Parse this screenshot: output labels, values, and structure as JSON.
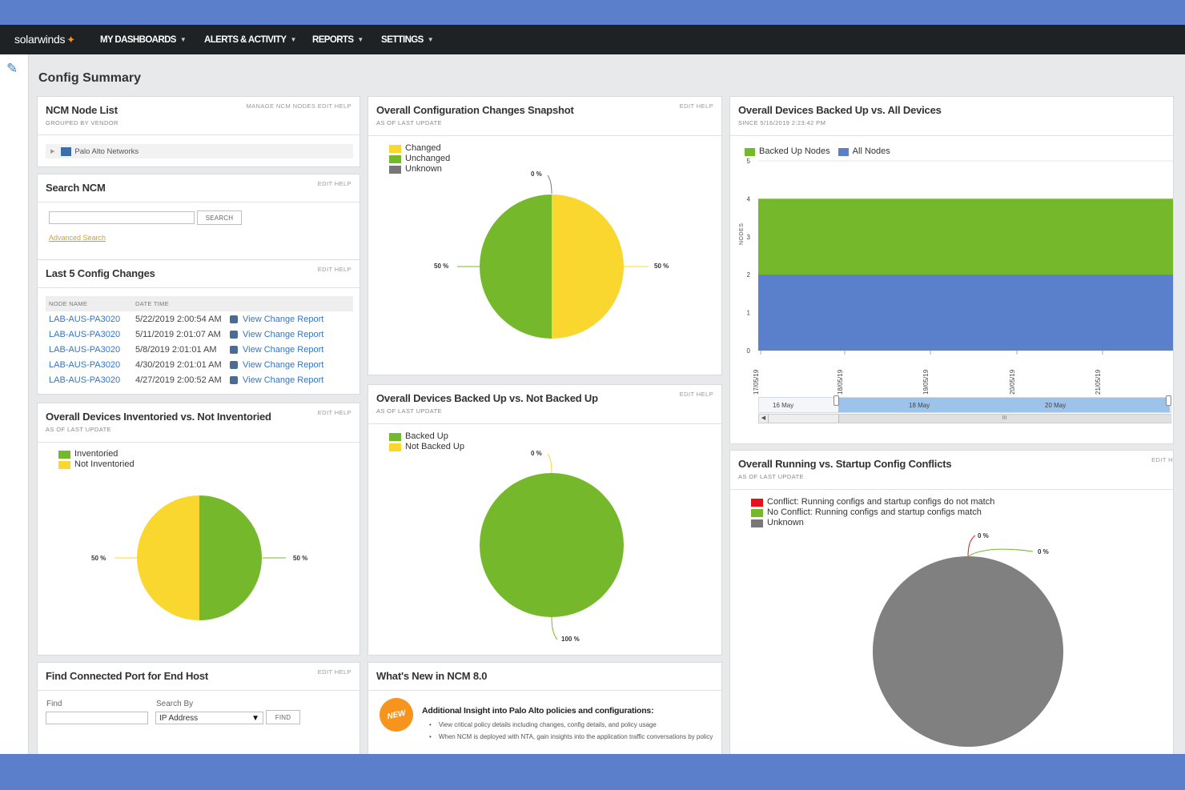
{
  "nav": {
    "logo": "solarwinds",
    "items": [
      {
        "label": "MY DASHBOARDS"
      },
      {
        "label": "ALERTS & ACTIVITY"
      },
      {
        "label": "REPORTS"
      },
      {
        "label": "SETTINGS"
      }
    ]
  },
  "page": {
    "title": "Config Summary"
  },
  "colors": {
    "green": "#75b82b",
    "yellow": "#f9d72f",
    "gray": "#777777",
    "blue": "#5a7fcb",
    "red": "#e3121c",
    "link": "#3575c0"
  },
  "nodelist": {
    "title": "NCM Node List",
    "subtitle": "GROUPED BY VENDOR",
    "links": "MANAGE NCM NODES  EDIT  HELP",
    "vendor": "Palo Alto Networks"
  },
  "search": {
    "title": "Search NCM",
    "links": "EDIT  HELP",
    "button": "SEARCH",
    "advanced": "Advanced Search",
    "value": ""
  },
  "changes": {
    "title": "Last 5 Config Changes",
    "links": "EDIT  HELP",
    "col_node": "NODE NAME",
    "col_date": "DATE TIME",
    "rows": [
      {
        "node": "LAB-AUS-PA3020",
        "date": "5/22/2019 2:00:54 AM",
        "link": "View Change Report"
      },
      {
        "node": "LAB-AUS-PA3020",
        "date": "5/11/2019 2:01:07 AM",
        "link": "View Change Report"
      },
      {
        "node": "LAB-AUS-PA3020",
        "date": "5/8/2019 2:01:01 AM",
        "link": "View Change Report"
      },
      {
        "node": "LAB-AUS-PA3020",
        "date": "4/30/2019 2:01:01 AM",
        "link": "View Change Report"
      },
      {
        "node": "LAB-AUS-PA3020",
        "date": "4/27/2019 2:00:52 AM",
        "link": "View Change Report"
      }
    ]
  },
  "inventoried": {
    "title": "Overall Devices Inventoried vs. Not Inventoried",
    "subtitle": "AS OF LAST UPDATE",
    "links": "EDIT  HELP",
    "legend": [
      "Inventoried",
      "Not Inventoried"
    ],
    "label_left": "50 %",
    "label_right": "50 %"
  },
  "findport": {
    "title": "Find Connected Port for End Host",
    "links": "EDIT  HELP",
    "find_label": "Find",
    "searchby_label": "Search By",
    "searchby_value": "IP Address",
    "button": "FIND"
  },
  "snapshot": {
    "title": "Overall Configuration Changes Snapshot",
    "subtitle": "AS OF LAST UPDATE",
    "links": "EDIT  HELP",
    "legend": [
      "Changed",
      "Unchanged",
      "Unknown"
    ],
    "label_top": "0 %",
    "label_left": "50 %",
    "label_right": "50 %"
  },
  "backedup": {
    "title": "Overall Devices Backed Up vs. Not Backed Up",
    "subtitle": "AS OF LAST UPDATE",
    "links": "EDIT  HELP",
    "legend": [
      "Backed Up",
      "Not Backed Up"
    ],
    "label_top": "0 %",
    "label_bottom": "100 %"
  },
  "whatsnew": {
    "title": "What's New in NCM 8.0",
    "badge": "NEW",
    "headline": "Additional Insight into Palo Alto policies and configurations:",
    "bullets": [
      "View critical policy details including changes, config details, and policy usage",
      "When NCM is deployed with NTA, gain insights into the application traffic conversations by policy"
    ]
  },
  "areachart": {
    "title": "Overall Devices Backed Up vs. All Devices",
    "subtitle": "SINCE 5/16/2019 2:23:42 PM",
    "legend": [
      "Backed Up Nodes",
      "All Nodes"
    ],
    "ylabel": "NODES",
    "navigator_labels": [
      "16 May",
      "18 May",
      "20 May"
    ],
    "navigator_scroll": "III"
  },
  "conflicts": {
    "title": "Overall Running vs. Startup Config Conflicts",
    "subtitle": "AS OF LAST UPDATE",
    "links": "EDIT  H",
    "legend": [
      "Conflict: Running configs and startup configs do not match",
      "No Conflict: Running configs and startup configs match",
      "Unknown"
    ],
    "label_a": "0 %",
    "label_b": "0 %"
  },
  "chart_data": [
    {
      "type": "pie",
      "title": "Overall Devices Inventoried vs. Not Inventoried",
      "categories": [
        "Inventoried",
        "Not Inventoried"
      ],
      "values": [
        50,
        50
      ]
    },
    {
      "type": "pie",
      "title": "Overall Configuration Changes Snapshot",
      "categories": [
        "Changed",
        "Unchanged",
        "Unknown"
      ],
      "values": [
        50,
        50,
        0
      ]
    },
    {
      "type": "pie",
      "title": "Overall Devices Backed Up vs. Not Backed Up",
      "categories": [
        "Backed Up",
        "Not Backed Up"
      ],
      "values": [
        100,
        0
      ]
    },
    {
      "type": "area",
      "title": "Overall Devices Backed Up vs. All Devices",
      "ylabel": "NODES",
      "ylim": [
        0,
        5
      ],
      "yticks": [
        0,
        1,
        2,
        3,
        4,
        5
      ],
      "x": [
        "17/05/19",
        "18/05/19",
        "19/05/19",
        "20/05/19",
        "21/05/19"
      ],
      "series": [
        {
          "name": "Backed Up Nodes",
          "values": [
            4,
            4,
            4,
            4,
            4
          ]
        },
        {
          "name": "All Nodes",
          "values": [
            2,
            2,
            2,
            2,
            2
          ]
        }
      ]
    },
    {
      "type": "pie",
      "title": "Overall Running vs. Startup Config Conflicts",
      "categories": [
        "Conflict: Running configs and startup configs do not match",
        "No Conflict: Running configs and startup configs match",
        "Unknown"
      ],
      "values": [
        0,
        0,
        100
      ]
    }
  ]
}
